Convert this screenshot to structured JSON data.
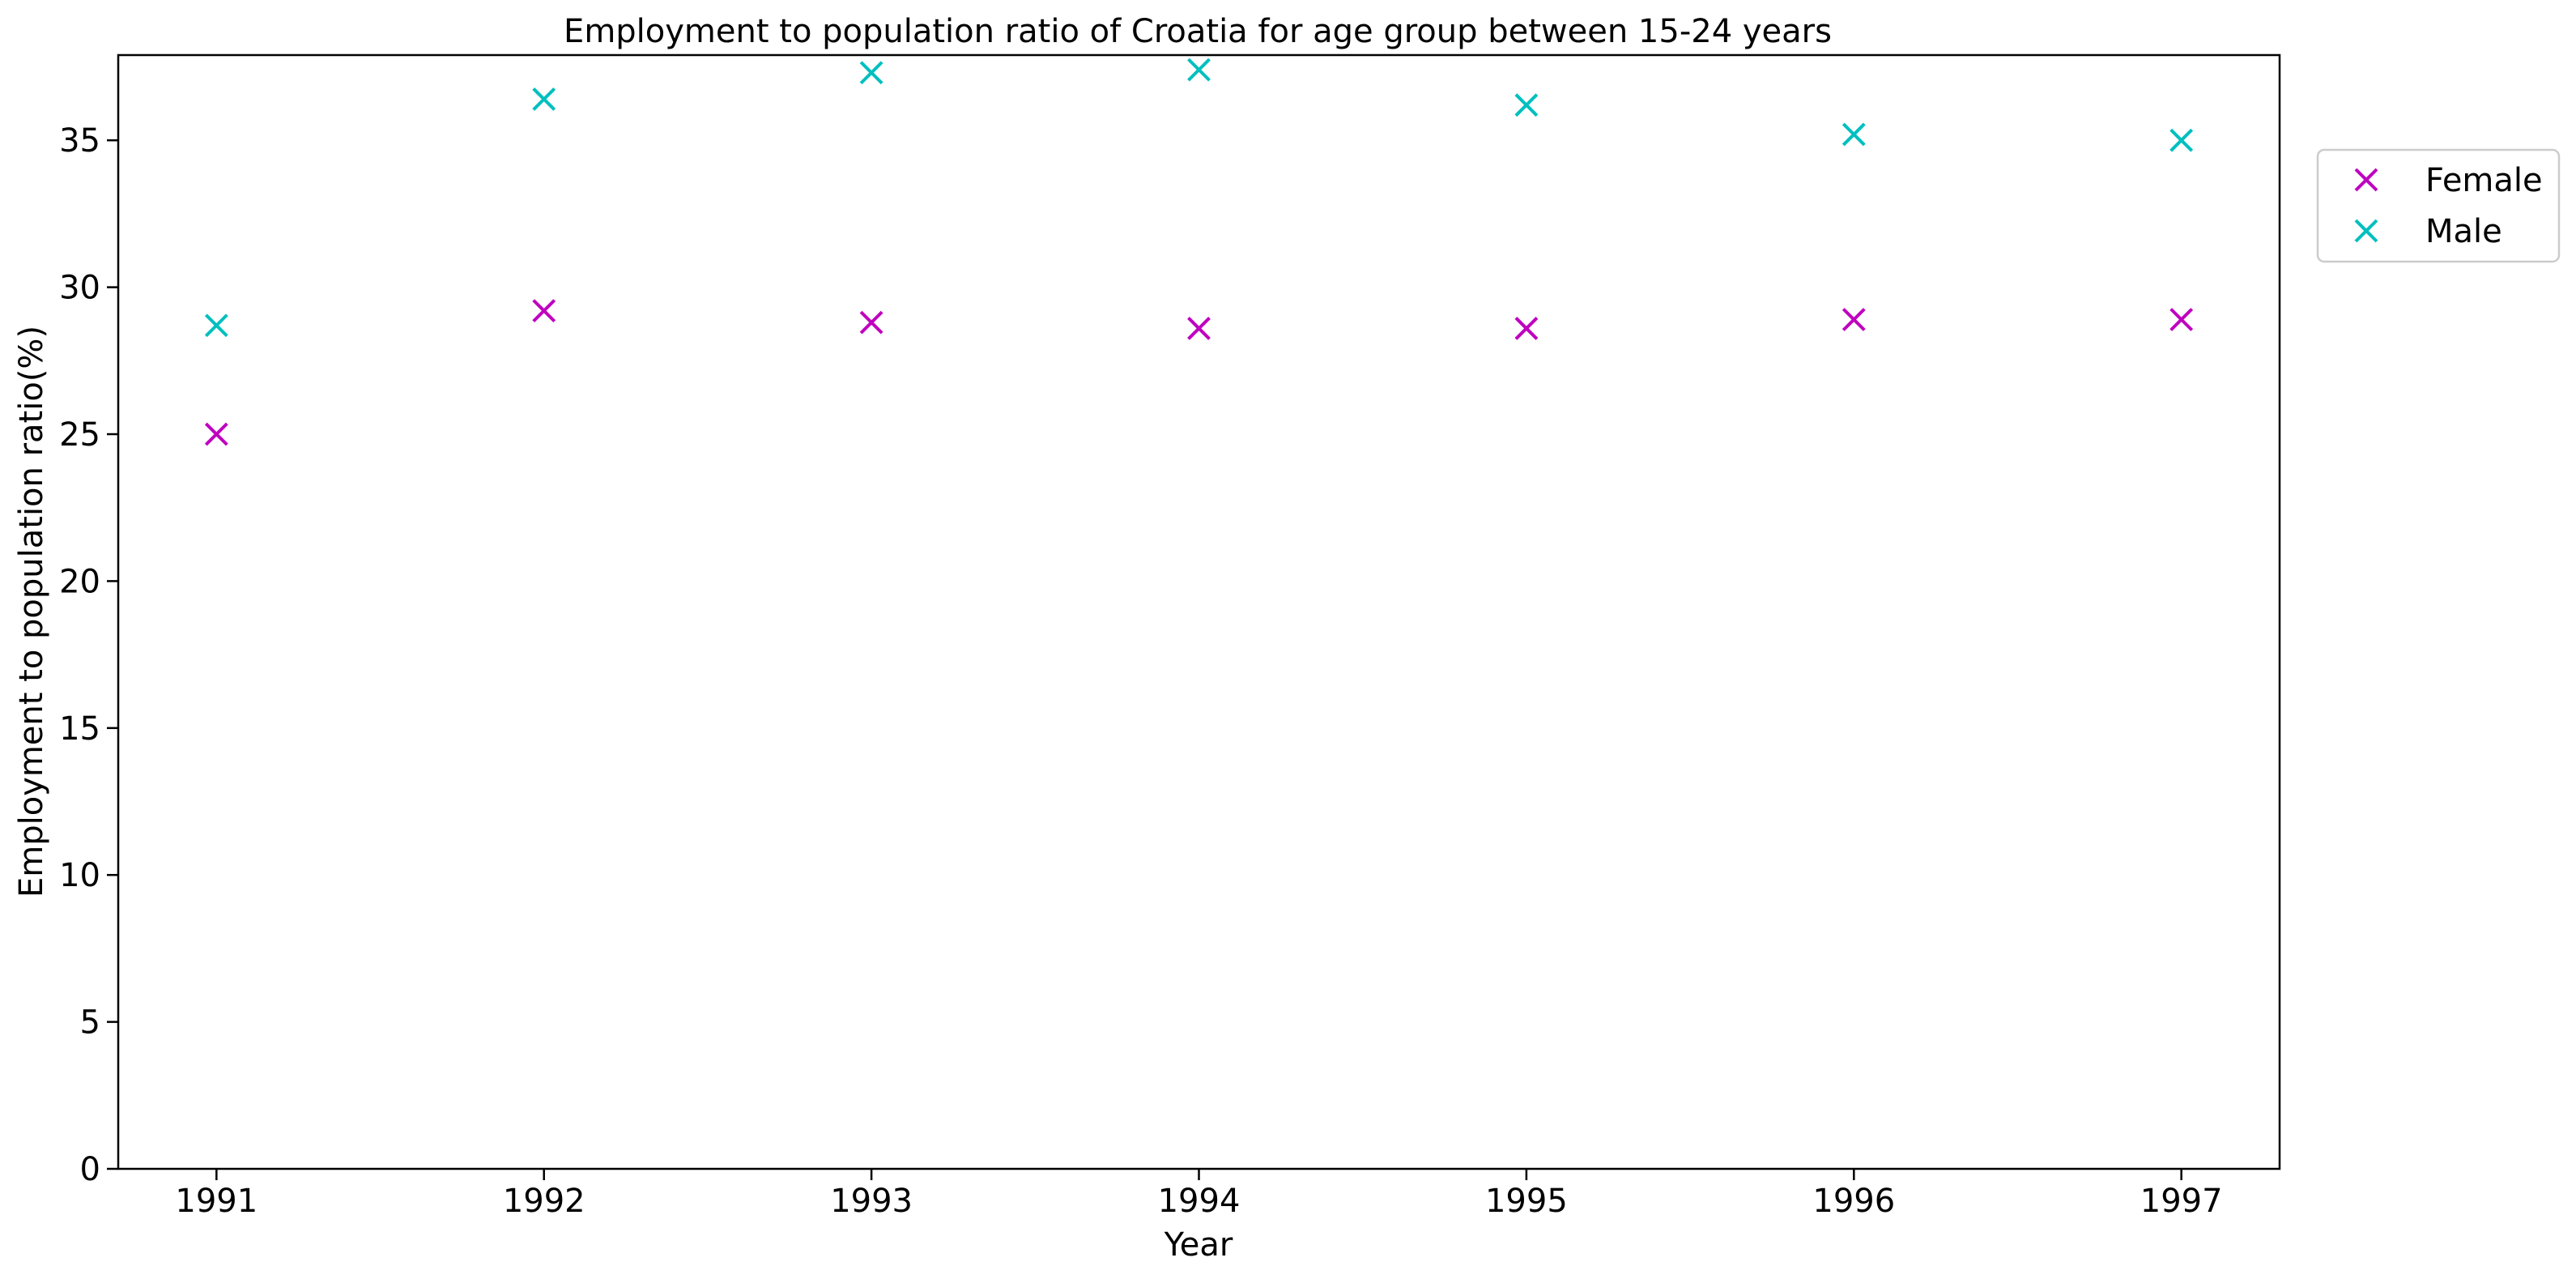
{
  "chart_data": {
    "type": "scatter",
    "title": "Employment to population ratio of Croatia for age group between 15-24 years",
    "xlabel": "Year",
    "ylabel": "Employment to population ratio(%)",
    "x": [
      "1991",
      "1992",
      "1993",
      "1994",
      "1995",
      "1996",
      "1997"
    ],
    "xlim": [
      1990.7,
      1997.3
    ],
    "ylim": [
      0,
      37.9
    ],
    "yticks": [
      "0",
      "5",
      "10",
      "15",
      "20",
      "25",
      "30",
      "35"
    ],
    "grid": false,
    "legend_position": "outside-top-right",
    "marker": "x",
    "series": [
      {
        "name": "Female",
        "color": "#bf00bf",
        "values": [
          25.0,
          29.2,
          28.8,
          28.6,
          28.6,
          28.9,
          28.9
        ]
      },
      {
        "name": "Male",
        "color": "#00bfbf",
        "values": [
          28.7,
          36.4,
          37.3,
          37.4,
          36.2,
          35.2,
          35.0
        ]
      }
    ]
  }
}
